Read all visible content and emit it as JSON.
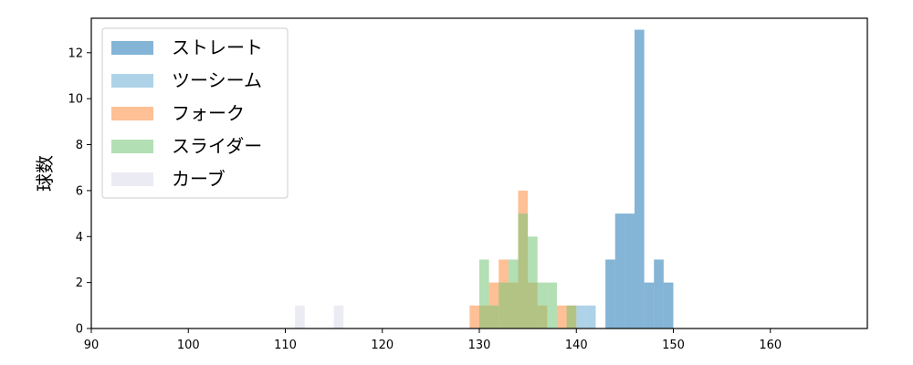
{
  "chart_data": {
    "type": "bar",
    "xlabel": "",
    "ylabel": "球数",
    "xlim": [
      90,
      170
    ],
    "ylim": [
      0,
      13.5
    ],
    "bin_width": 1,
    "xticks": [
      90,
      100,
      110,
      120,
      130,
      140,
      150,
      160
    ],
    "yticks": [
      0,
      2,
      4,
      6,
      8,
      10,
      12
    ],
    "legend_position": "top-left",
    "grid": false,
    "series": [
      {
        "name": "ストレート",
        "color": "#1f77b4",
        "bins": [
          {
            "x": 143,
            "count": 3
          },
          {
            "x": 144,
            "count": 5
          },
          {
            "x": 145,
            "count": 5
          },
          {
            "x": 146,
            "count": 13
          },
          {
            "x": 147,
            "count": 2
          },
          {
            "x": 148,
            "count": 3
          },
          {
            "x": 149,
            "count": 2
          }
        ]
      },
      {
        "name": "ツーシーム",
        "color": "#6baed6",
        "bins": [
          {
            "x": 140,
            "count": 1
          },
          {
            "x": 141,
            "count": 1
          }
        ]
      },
      {
        "name": "フォーク",
        "color": "#fd8d3c",
        "bins": [
          {
            "x": 129,
            "count": 1
          },
          {
            "x": 130,
            "count": 1
          },
          {
            "x": 131,
            "count": 2
          },
          {
            "x": 132,
            "count": 3
          },
          {
            "x": 133,
            "count": 2
          },
          {
            "x": 134,
            "count": 6
          },
          {
            "x": 135,
            "count": 2
          },
          {
            "x": 136,
            "count": 1
          },
          {
            "x": 138,
            "count": 1
          },
          {
            "x": 139,
            "count": 1
          }
        ]
      },
      {
        "name": "スライダー",
        "color": "#74c476",
        "bins": [
          {
            "x": 130,
            "count": 3
          },
          {
            "x": 131,
            "count": 1
          },
          {
            "x": 132,
            "count": 2
          },
          {
            "x": 133,
            "count": 3
          },
          {
            "x": 134,
            "count": 5
          },
          {
            "x": 135,
            "count": 4
          },
          {
            "x": 136,
            "count": 2
          },
          {
            "x": 137,
            "count": 2
          },
          {
            "x": 139,
            "count": 1
          }
        ]
      },
      {
        "name": "カーブ",
        "color": "#dadaeb",
        "bins": [
          {
            "x": 111,
            "count": 1
          },
          {
            "x": 115,
            "count": 1
          }
        ]
      }
    ]
  }
}
